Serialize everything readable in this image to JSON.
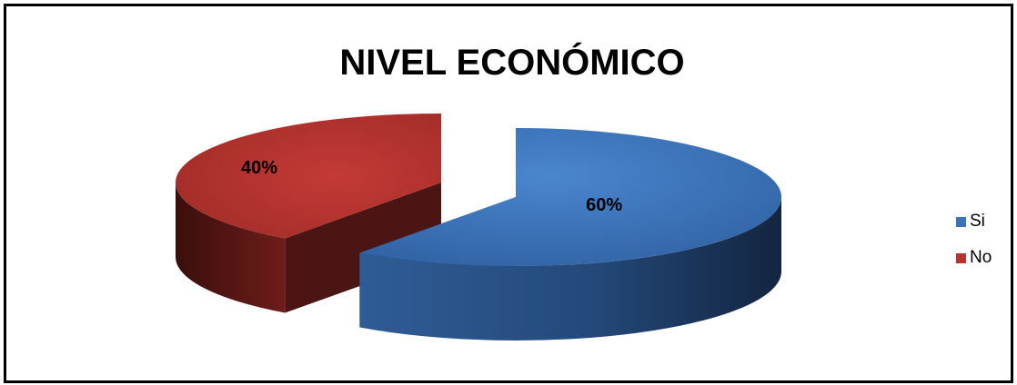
{
  "chart_data": {
    "type": "pie",
    "title": "NIVEL ECONÓMICO",
    "categories": [
      "Si",
      "No"
    ],
    "values": [
      60,
      40
    ],
    "data_labels": [
      "60%",
      "40%"
    ],
    "colors": [
      "#3c72b8",
      "#b8322e"
    ],
    "legend_position": "right",
    "style": "3d-exploded"
  }
}
